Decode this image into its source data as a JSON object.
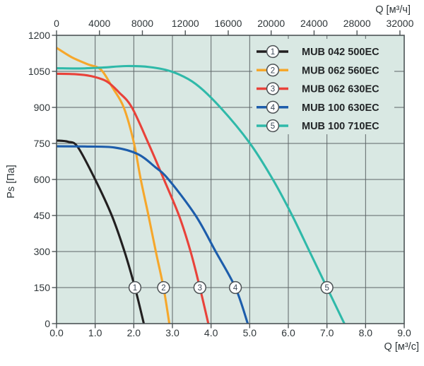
{
  "chart_data": {
    "type": "line",
    "title": "",
    "legend_position": "top-right-inside",
    "grid": true,
    "axes": {
      "bottom": {
        "label": "Q [м³/с]",
        "min": 0,
        "max": 9,
        "tick_labels": [
          "0.0",
          "1.0",
          "2.0",
          "3.0",
          "4.0",
          "5.0",
          "6.0",
          "7.0",
          "8.0",
          "9.0"
        ]
      },
      "top": {
        "label": "Q [м³/ч]",
        "tick_labels": [
          "0",
          "4000",
          "8000",
          "12000",
          "16000",
          "20000",
          "24000",
          "28000",
          "32000"
        ],
        "seconds_per_hour": 3600
      },
      "left": {
        "label": "Ps [Па]",
        "min": 0,
        "max": 1200,
        "tick_step": 150,
        "tick_labels": [
          "0",
          "150",
          "300",
          "450",
          "600",
          "750",
          "900",
          "1050",
          "1200"
        ]
      }
    },
    "series": [
      {
        "num": "1",
        "name": "MUB 042 500EC",
        "color": "#221f20",
        "marker": [
          2.03,
          150
        ],
        "points": [
          [
            0,
            762
          ],
          [
            0.3,
            757
          ],
          [
            0.55,
            735
          ],
          [
            1.0,
            600
          ],
          [
            1.43,
            450
          ],
          [
            1.76,
            300
          ],
          [
            2.03,
            150
          ],
          [
            2.26,
            0
          ]
        ]
      },
      {
        "num": "2",
        "name": "MUB 062 560EC",
        "color": "#f6a72b",
        "marker": [
          2.77,
          150
        ],
        "points": [
          [
            0,
            1148
          ],
          [
            0.4,
            1108
          ],
          [
            0.8,
            1080
          ],
          [
            1.15,
            1057
          ],
          [
            1.45,
            982
          ],
          [
            1.74,
            900
          ],
          [
            2.0,
            755
          ],
          [
            2.18,
            600
          ],
          [
            2.38,
            450
          ],
          [
            2.57,
            300
          ],
          [
            2.77,
            150
          ],
          [
            2.92,
            0
          ]
        ]
      },
      {
        "num": "3",
        "name": "MUB 062 630EC",
        "color": "#e9423a",
        "marker": [
          3.71,
          150
        ],
        "points": [
          [
            0,
            1040
          ],
          [
            0.5,
            1038
          ],
          [
            0.9,
            1030
          ],
          [
            1.3,
            1008
          ],
          [
            1.62,
            962
          ],
          [
            1.95,
            900
          ],
          [
            2.38,
            750
          ],
          [
            2.78,
            600
          ],
          [
            3.17,
            450
          ],
          [
            3.47,
            300
          ],
          [
            3.71,
            150
          ],
          [
            3.93,
            0
          ]
        ]
      },
      {
        "num": "4",
        "name": "MUB 100 630EC",
        "color": "#1d5dab",
        "marker": [
          4.63,
          150
        ],
        "points": [
          [
            0,
            738
          ],
          [
            0.8,
            737
          ],
          [
            1.5,
            733
          ],
          [
            2.1,
            706
          ],
          [
            2.55,
            652
          ],
          [
            2.9,
            600
          ],
          [
            3.6,
            450
          ],
          [
            4.12,
            300
          ],
          [
            4.63,
            150
          ],
          [
            4.95,
            0
          ]
        ]
      },
      {
        "num": "5",
        "name": "MUB 100 710EC",
        "color": "#2fb9a9",
        "marker": [
          7.0,
          150
        ],
        "points": [
          [
            0,
            1063
          ],
          [
            0.6,
            1062
          ],
          [
            1.2,
            1066
          ],
          [
            1.8,
            1072
          ],
          [
            2.4,
            1068
          ],
          [
            3.0,
            1048
          ],
          [
            3.6,
            998
          ],
          [
            4.24,
            900
          ],
          [
            5.0,
            752
          ],
          [
            5.6,
            600
          ],
          [
            6.1,
            450
          ],
          [
            6.55,
            300
          ],
          [
            7.0,
            150
          ],
          [
            7.45,
            0
          ]
        ]
      }
    ],
    "colors": {
      "plot_background": "#d9e8e3",
      "grid": "#5d6567",
      "frame": "#4d5456",
      "tick_text": "#2f3639",
      "legend_text": "#222527",
      "marker_circle_fill": "#ffffff",
      "marker_circle_stroke": "#4b5154",
      "marker_number": "#3a4756"
    }
  }
}
